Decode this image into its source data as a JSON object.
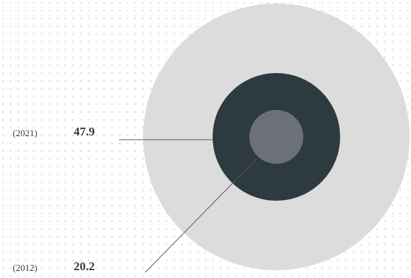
{
  "chart_data": {
    "type": "proportional-circles",
    "series": [
      {
        "year": "(2012)",
        "value": 20.2,
        "color": "#6c7079"
      },
      {
        "year": "(2021)",
        "value": 47.9,
        "color": "#2d3a40"
      },
      {
        "year": "",
        "value": null,
        "color": "#dcdcdc"
      }
    ],
    "background_pattern": "dot-grid",
    "grid_dot_color": "#cfd3d6"
  }
}
